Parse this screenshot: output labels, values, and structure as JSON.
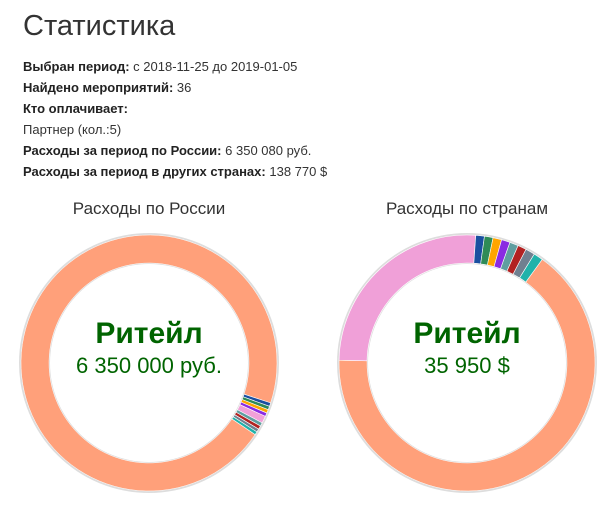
{
  "header": {
    "title": "Статистика"
  },
  "info": {
    "period_label": "Выбран период:",
    "period_value": "с 2018-11-25 до 2019-01-05",
    "events_label": "Найдено мероприятий:",
    "events_value": "36",
    "payer_label": "Кто оплачивает:",
    "payer_value": "Партнер (кол.:5)",
    "russia_label": "Расходы за период по России:",
    "russia_value": "6 350 080 руб.",
    "abroad_label": "Расходы за период в других странах:",
    "abroad_value": "138 770 $"
  },
  "chart_data": [
    {
      "type": "pie",
      "title": "Расходы по России",
      "center_label": "Ритейл",
      "center_value": "6 350 000 руб.",
      "colors": [
        "#ffa07a",
        "#1a4fa0",
        "#2e8b57",
        "#ffa500",
        "#8a2be2",
        "#f0a0d8",
        "#5f9ea0",
        "#b22222",
        "#708090",
        "#20b2aa"
      ],
      "values": [
        95.6,
        0.45,
        0.45,
        0.45,
        0.45,
        0.9,
        0.45,
        0.45,
        0.4,
        0.4
      ]
    },
    {
      "type": "pie",
      "title": "Расходы по странам",
      "center_label": "Ритейл",
      "center_value": "35 950 $",
      "colors": [
        "#ffa07a",
        "#f0a0d8",
        "#1a4fa0",
        "#2e8b57",
        "#ffa500",
        "#8a2be2",
        "#5f9ea0",
        "#b22222",
        "#708090",
        "#20b2aa"
      ],
      "values": [
        66.0,
        26.0,
        1.1,
        1.1,
        1.1,
        1.1,
        1.1,
        1.1,
        1.2,
        1.2
      ]
    }
  ]
}
